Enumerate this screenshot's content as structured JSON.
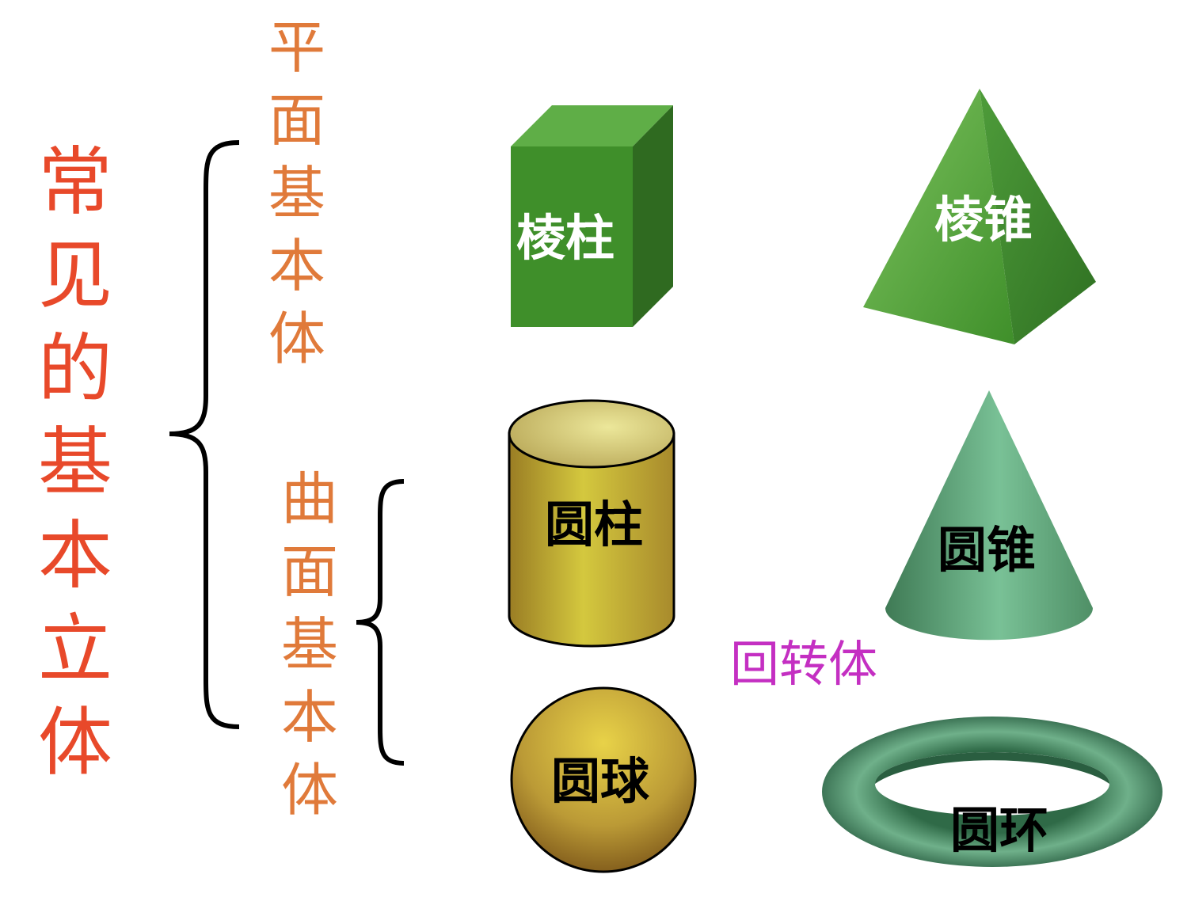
{
  "title": {
    "text": "常见的基本立体",
    "color": "#e8492a"
  },
  "groups": {
    "planar": {
      "label": "平面基本体",
      "color": "#e07a3a"
    },
    "curved": {
      "label": "曲面基本体",
      "color": "#e07a3a"
    },
    "revolution": {
      "label": "回转体",
      "color": "#c42fc2"
    }
  },
  "shapes": {
    "prism": {
      "label": "棱柱",
      "color": "#3f8f2a",
      "text_color": "#ffffff"
    },
    "pyramid": {
      "label": "棱锥",
      "color": "#4ea338",
      "text_color": "#ffffff"
    },
    "cylinder": {
      "label": "圆柱",
      "color": "#c9bf3a",
      "text_color": "#000000"
    },
    "cone": {
      "label": "圆锥",
      "color": "#6fb78b",
      "text_color": "#000000"
    },
    "sphere": {
      "label": "圆球",
      "color": "#b8952e",
      "text_color": "#000000"
    },
    "torus": {
      "label": "圆环",
      "color": "#5f9e78",
      "text_color": "#000000"
    }
  }
}
